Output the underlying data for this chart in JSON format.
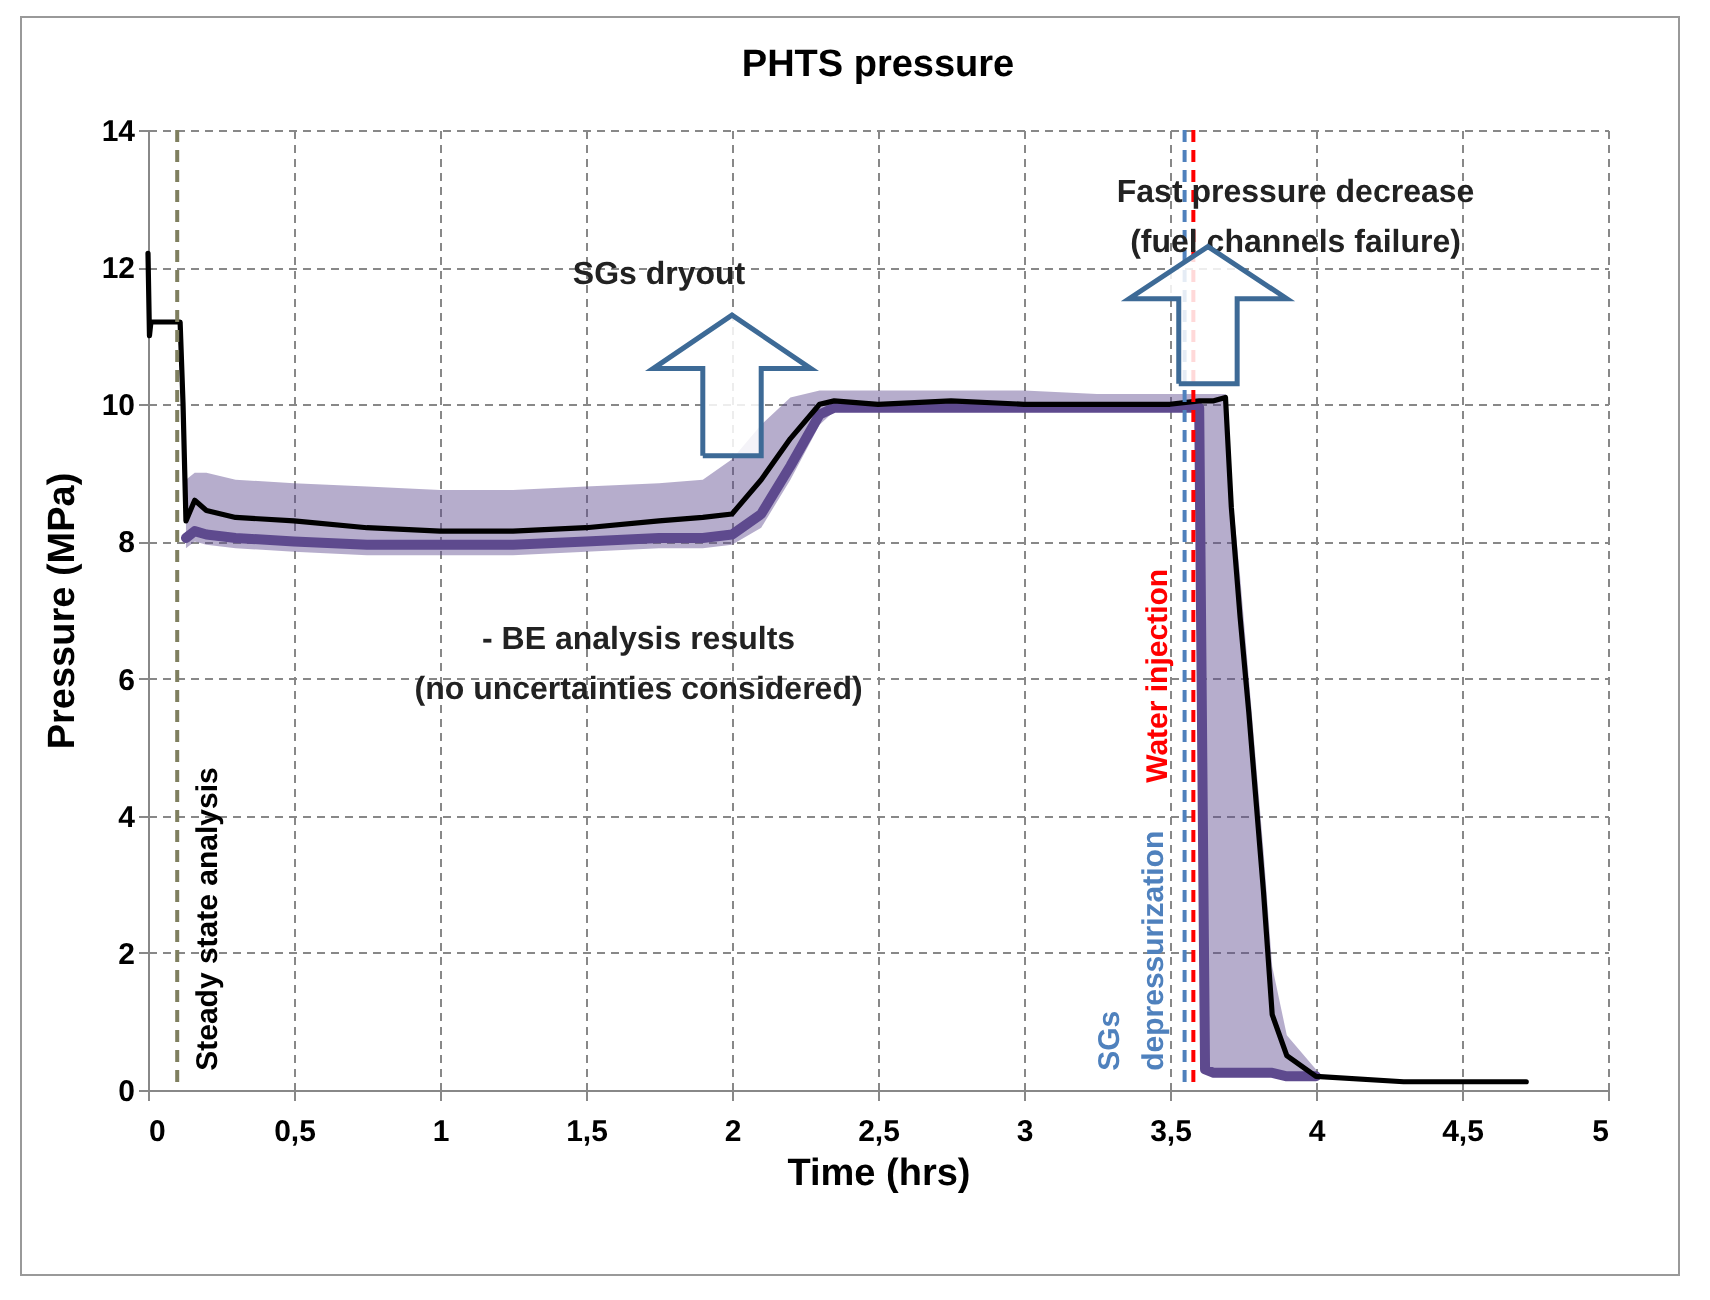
{
  "chart_data": {
    "type": "line",
    "title": "PHTS pressure",
    "xlabel": "Time (hrs)",
    "ylabel": "Pressure (MPa)",
    "x": [
      0,
      0.005,
      0.01,
      0.11,
      0.12,
      0.13,
      0.16,
      0.2,
      0.3,
      0.5,
      0.75,
      1.0,
      1.25,
      1.5,
      1.75,
      1.9,
      2.0,
      2.1,
      2.2,
      2.3,
      2.35,
      2.5,
      2.75,
      3.0,
      3.25,
      3.5,
      3.6,
      3.62,
      3.65,
      3.69,
      3.71,
      3.74,
      3.77,
      3.82,
      3.85,
      3.9,
      4.0,
      4.3,
      4.72
    ],
    "series": [
      {
        "color": "#5e4a8e",
        "values": [
          null,
          null,
          null,
          null,
          null,
          8.05,
          8.15,
          8.1,
          8.05,
          8.0,
          7.95,
          7.95,
          7.95,
          8.0,
          8.05,
          8.05,
          8.1,
          8.4,
          9.1,
          9.85,
          9.95,
          9.95,
          9.95,
          9.95,
          9.95,
          9.95,
          9.95,
          0.3,
          0.25,
          0.25,
          0.25,
          0.25,
          0.25,
          0.25,
          0.25,
          0.2,
          0.2,
          null,
          null
        ],
        "upper": [
          null,
          null,
          null,
          null,
          null,
          8.9,
          9.0,
          9.0,
          8.9,
          8.85,
          8.8,
          8.75,
          8.75,
          8.8,
          8.85,
          8.9,
          9.2,
          9.7,
          10.1,
          10.2,
          10.2,
          10.2,
          10.2,
          10.2,
          10.15,
          10.15,
          10.15,
          10.15,
          10.15,
          10.15,
          8.8,
          7.5,
          6.0,
          3.5,
          1.8,
          0.8,
          0.3,
          null,
          null
        ],
        "lower": [
          null,
          null,
          null,
          null,
          null,
          7.9,
          8.0,
          7.95,
          7.9,
          7.85,
          7.8,
          7.8,
          7.8,
          7.85,
          7.9,
          7.9,
          7.95,
          8.2,
          8.9,
          9.7,
          9.9,
          9.9,
          9.9,
          9.9,
          9.9,
          9.9,
          9.9,
          0.3,
          0.2,
          0.2,
          0.2,
          0.2,
          0.2,
          0.2,
          0.2,
          0.15,
          0.15,
          null,
          null
        ]
      },
      {
        "color": "#000000",
        "values": [
          12.2,
          11.0,
          11.2,
          11.2,
          10.0,
          8.3,
          8.6,
          8.45,
          8.35,
          8.3,
          8.2,
          8.15,
          8.15,
          8.2,
          8.3,
          8.35,
          8.4,
          8.9,
          9.5,
          10.0,
          10.05,
          10.0,
          10.05,
          10.0,
          10.0,
          10.0,
          10.05,
          10.05,
          10.05,
          10.1,
          8.5,
          6.9,
          5.5,
          2.9,
          1.1,
          0.5,
          0.2,
          0.12,
          0.12
        ]
      }
    ],
    "xlim": [
      0,
      5
    ],
    "xticks": [
      0,
      {
        "value": 0.5,
        "label": "0,5"
      },
      1,
      {
        "value": 1.5,
        "label": "1,5"
      },
      2,
      {
        "value": 2.5,
        "label": "2,5"
      },
      3,
      {
        "value": 3.5,
        "label": "3,5"
      },
      4,
      {
        "value": 4.5,
        "label": "4,5"
      },
      5
    ],
    "ylim": [
      0,
      14
    ],
    "yticks": [
      0,
      2,
      4,
      6,
      8,
      10,
      12,
      14
    ],
    "grid": true,
    "line_style": "solid",
    "ref_lines": [
      {
        "axis": "x",
        "value": 0.1,
        "label": "Steady state analysis",
        "color": "#7f7f5f",
        "line_style": "dashed"
      },
      {
        "axis": "x",
        "value": 3.55,
        "label": "SGs\ndepressurization",
        "color": "#4f81bd",
        "line_style": "dashed"
      },
      {
        "axis": "x",
        "value": 3.58,
        "label": "Water injection",
        "color": "#ff0000",
        "line_style": "dashed"
      }
    ],
    "annotations": [
      "SGs dryout",
      "Fast pressure decrease\n(fuel channels failure)",
      "- BE analysis results\n(no uncertainties considered)"
    ]
  }
}
